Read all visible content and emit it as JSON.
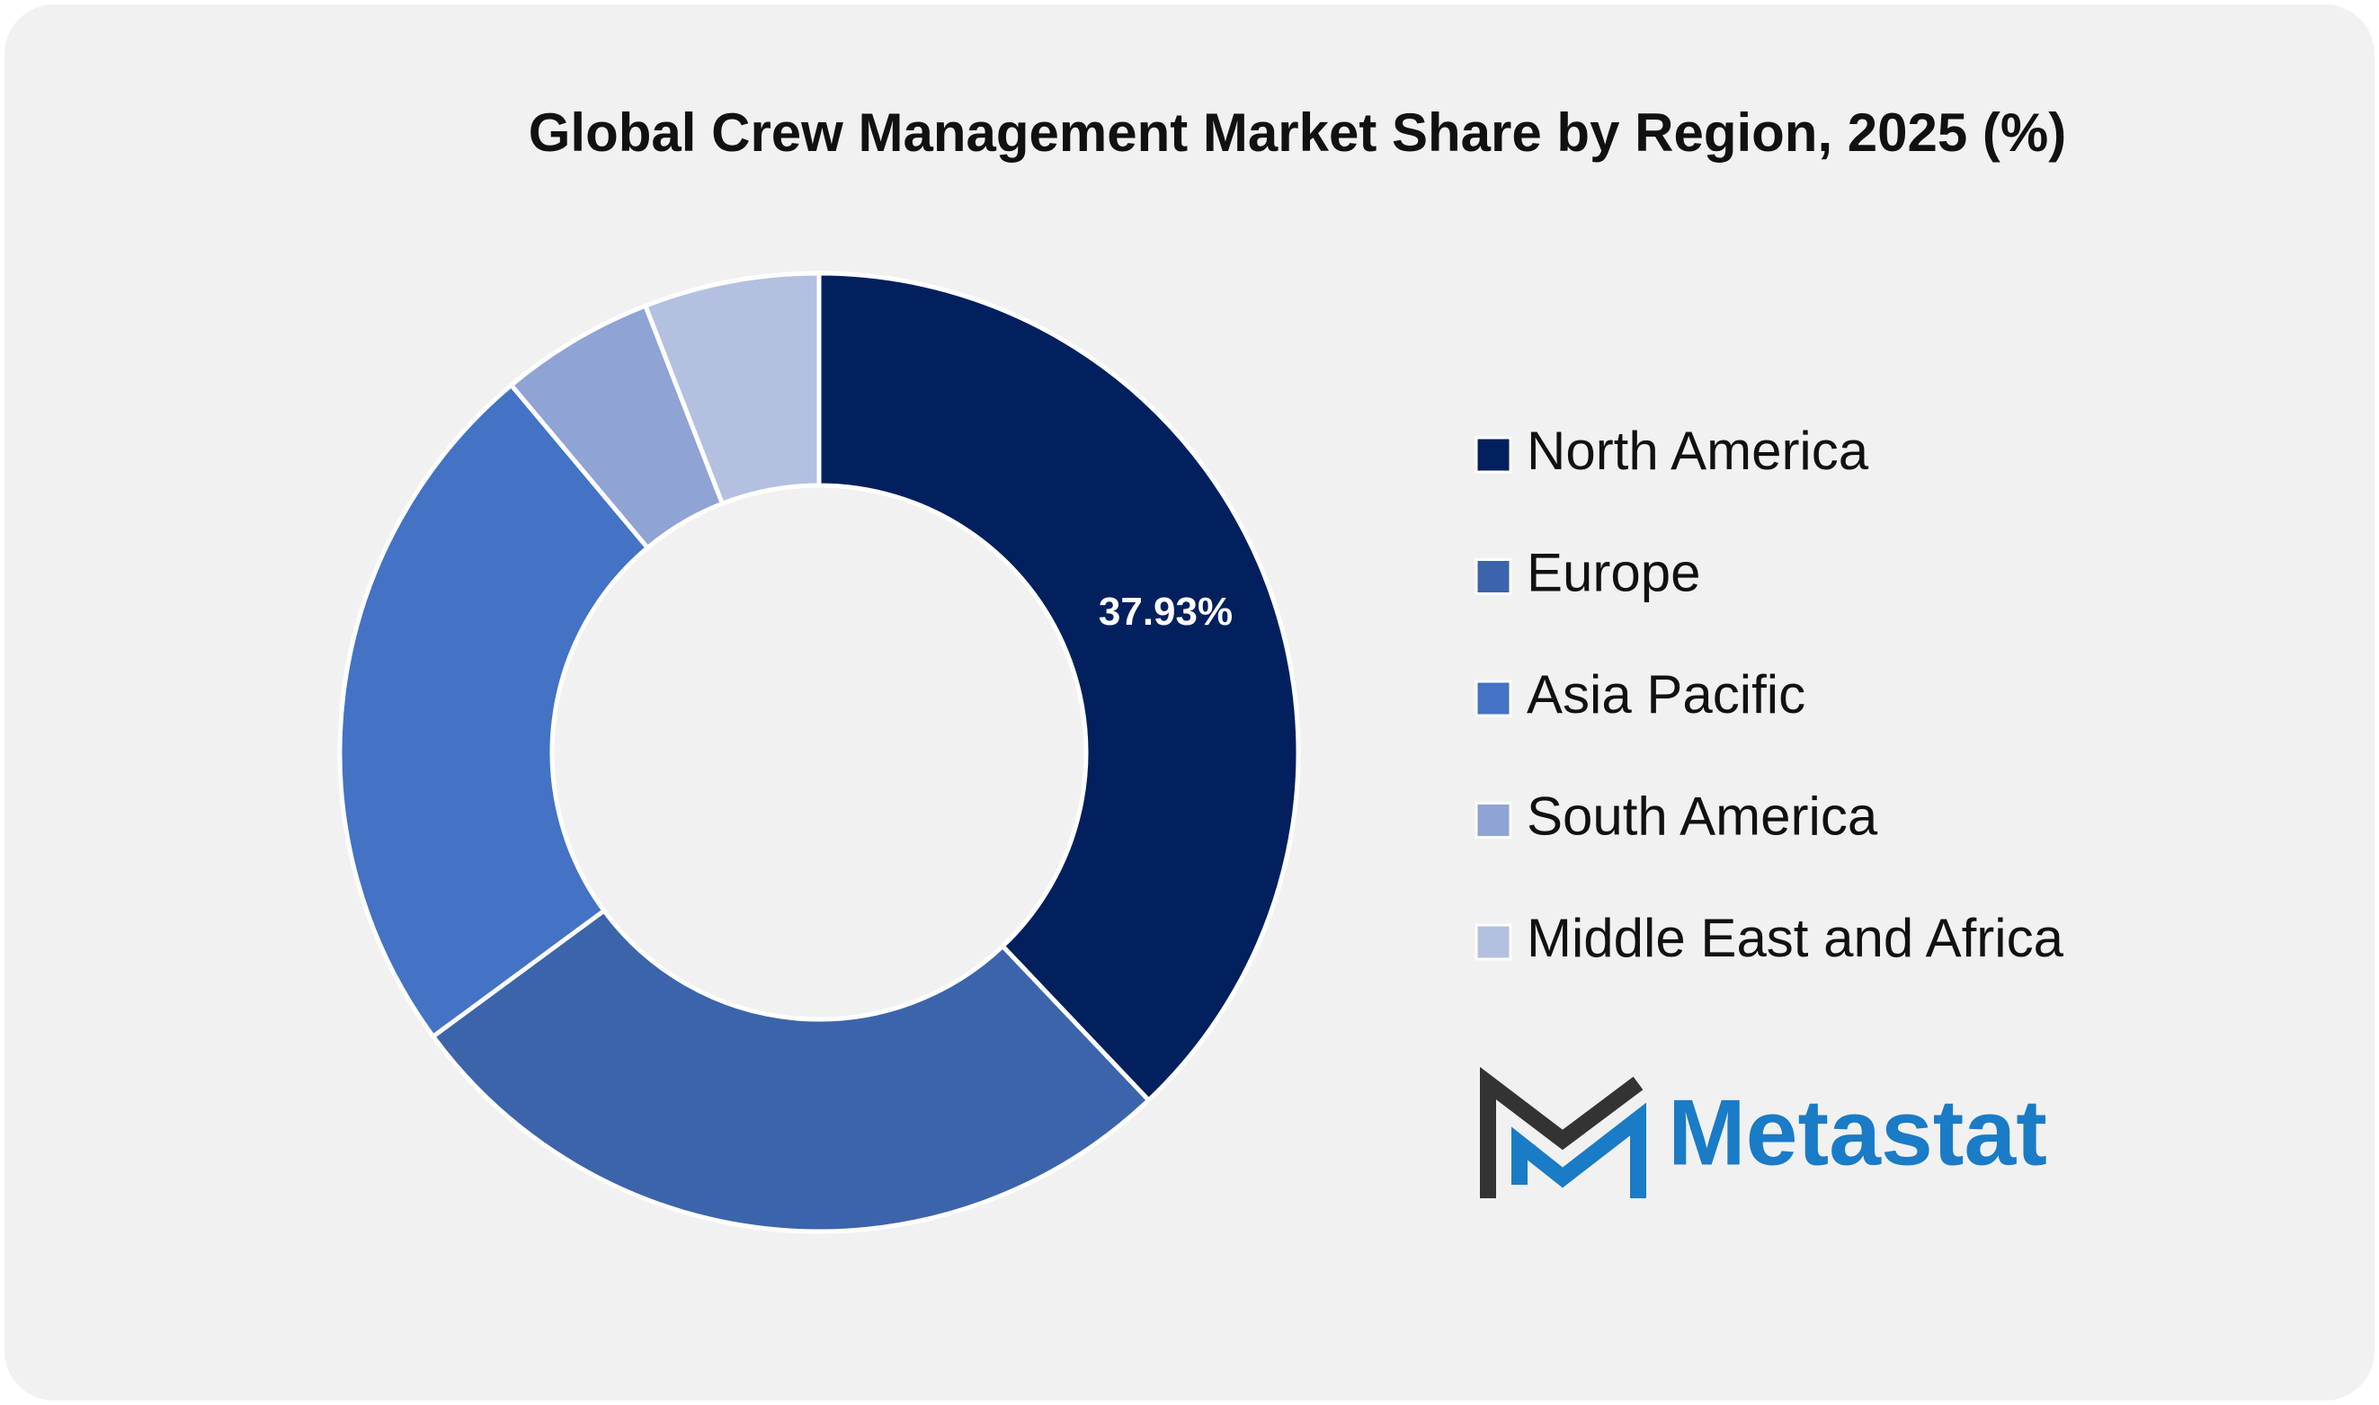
{
  "chart_data": {
    "type": "donut",
    "title": "Global Crew Management Market Share by Region, 2025 (%)",
    "categories": [
      "North America",
      "Europe",
      "Asia Pacific",
      "South America",
      "Middle East and Africa"
    ],
    "values": [
      37.93,
      26.97,
      24.0,
      5.2,
      5.9
    ],
    "value_labels": [
      "37.93%",
      null,
      null,
      null,
      null
    ],
    "colors": [
      "#02205e",
      "#3c64ab",
      "#4472c4",
      "#8fa3d4",
      "#b4c0e0"
    ],
    "legend": "right"
  },
  "logo": "Metastat"
}
